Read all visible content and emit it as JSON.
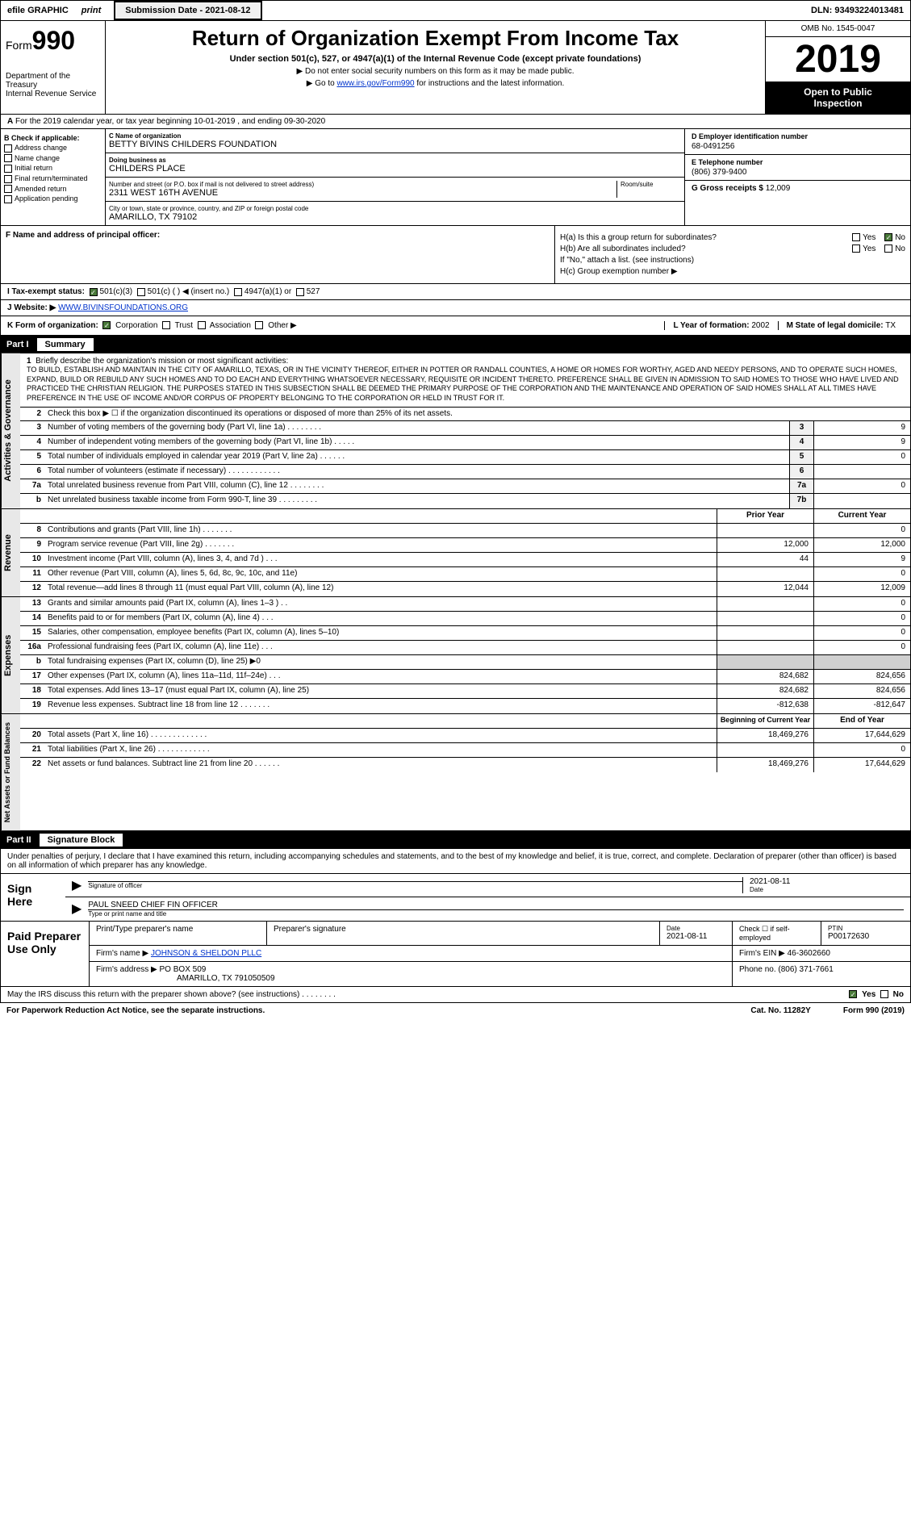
{
  "topbar": {
    "efile": "efile GRAPHIC",
    "print": "print",
    "submission_label": "Submission Date - 2021-08-12",
    "dln": "DLN: 93493224013481"
  },
  "header": {
    "form_label": "Form",
    "form_number": "990",
    "dept": "Department of the Treasury",
    "irs": "Internal Revenue Service",
    "title": "Return of Organization Exempt From Income Tax",
    "subtitle": "Under section 501(c), 527, or 4947(a)(1) of the Internal Revenue Code (except private foundations)",
    "arrow1": "▶ Do not enter social security numbers on this form as it may be made public.",
    "arrow2_pre": "▶ Go to ",
    "arrow2_link": "www.irs.gov/Form990",
    "arrow2_post": " for instructions and the latest information.",
    "omb": "OMB No. 1545-0047",
    "year": "2019",
    "inspection1": "Open to Public",
    "inspection2": "Inspection"
  },
  "period": "For the 2019 calendar year, or tax year beginning 10-01-2019    , and ending 09-30-2020",
  "box_b": {
    "title": "B Check if applicable:",
    "opts": [
      "Address change",
      "Name change",
      "Initial return",
      "Final return/terminated",
      "Amended return",
      "Application pending"
    ]
  },
  "box_c": {
    "name_lbl": "C Name of organization",
    "name": "BETTY BIVINS CHILDERS FOUNDATION",
    "dba_lbl": "Doing business as",
    "dba": "CHILDERS PLACE",
    "addr_lbl": "Number and street (or P.O. box if mail is not delivered to street address)",
    "room_lbl": "Room/suite",
    "addr": "2311 WEST 16TH AVENUE",
    "city_lbl": "City or town, state or province, country, and ZIP or foreign postal code",
    "city": "AMARILLO, TX  79102"
  },
  "box_d": {
    "lbl": "D Employer identification number",
    "val": "68-0491256"
  },
  "box_e": {
    "lbl": "E Telephone number",
    "val": "(806) 379-9400"
  },
  "box_g": {
    "lbl": "G Gross receipts $",
    "val": "12,009"
  },
  "box_f": "F  Name and address of principal officer:",
  "box_h": {
    "ha": "H(a)  Is this a group return for subordinates?",
    "hb": "H(b)  Are all subordinates included?",
    "hb_note": "If \"No,\" attach a list. (see instructions)",
    "hc": "H(c)  Group exemption number ▶",
    "yes": "Yes",
    "no": "No"
  },
  "tax_status": {
    "lbl": "I   Tax-exempt status:",
    "o1": "501(c)(3)",
    "o2": "501(c) (   ) ◀ (insert no.)",
    "o3": "4947(a)(1) or",
    "o4": "527"
  },
  "row_j": {
    "lbl": "J   Website: ▶",
    "val": "WWW.BIVINSFOUNDATIONS.ORG"
  },
  "row_k": {
    "lbl": "K Form of organization:",
    "o1": "Corporation",
    "o2": "Trust",
    "o3": "Association",
    "o4": "Other ▶",
    "l_lbl": "L Year of formation:",
    "l_val": "2002",
    "m_lbl": "M State of legal domicile:",
    "m_val": "TX"
  },
  "part1": {
    "label": "Part I",
    "title": "Summary"
  },
  "mission": {
    "num": "1",
    "intro": "Briefly describe the organization's mission or most significant activities:",
    "text": "TO BUILD, ESTABLISH AND MAINTAIN IN THE CITY OF AMARILLO, TEXAS, OR IN THE VICINITY THEREOF, EITHER IN POTTER OR RANDALL COUNTIES, A HOME OR HOMES FOR WORTHY, AGED AND NEEDY PERSONS, AND TO OPERATE SUCH HOMES, EXPAND, BUILD OR REBUILD ANY SUCH HOMES AND TO DO EACH AND EVERYTHING WHATSOEVER NECESSARY, REQUISITE OR INCIDENT THERETO. PREFERENCE SHALL BE GIVEN IN ADMISSION TO SAID HOMES TO THOSE WHO HAVE LIVED AND PRACTICED THE CHRISTIAN RELIGION. THE PURPOSES STATED IN THIS SUBSECTION SHALL BE DEEMED THE PRIMARY PURPOSE OF THE CORPORATION AND THE MAINTENANCE AND OPERATION OF SAID HOMES SHALL AT ALL TIMES HAVE PREFERENCE IN THE USE OF INCOME AND/OR CORPUS OF PROPERTY BELONGING TO THE CORPORATION OR HELD IN TRUST FOR IT."
  },
  "gov_lines": {
    "l2": "Check this box ▶ ☐ if the organization discontinued its operations or disposed of more than 25% of its net assets.",
    "l3": {
      "t": "Number of voting members of the governing body (Part VI, line 1a)   .    .    .    .    .    .    .    .",
      "b": "3",
      "v": "9"
    },
    "l4": {
      "t": "Number of independent voting members of the governing body (Part VI, line 1b)   .    .    .    .    .",
      "b": "4",
      "v": "9"
    },
    "l5": {
      "t": "Total number of individuals employed in calendar year 2019 (Part V, line 2a)   .    .    .    .    .    .",
      "b": "5",
      "v": "0"
    },
    "l6": {
      "t": "Total number of volunteers (estimate if necessary)   .    .    .    .    .    .    .    .    .    .    .    .",
      "b": "6",
      "v": ""
    },
    "l7a": {
      "t": "Total unrelated business revenue from Part VIII, column (C), line 12   .    .    .    .    .    .    .    .",
      "b": "7a",
      "v": "0"
    },
    "l7b": {
      "t": "Net unrelated business taxable income from Form 990-T, line 39   .    .    .    .    .    .    .    .    .",
      "b": "7b",
      "v": ""
    }
  },
  "rev_header": {
    "prior": "Prior Year",
    "current": "Current Year"
  },
  "revenue": [
    {
      "n": "8",
      "t": "Contributions and grants (Part VIII, line 1h)   .    .    .    .    .    .    .",
      "p": "",
      "c": "0"
    },
    {
      "n": "9",
      "t": "Program service revenue (Part VIII, line 2g)   .    .    .    .    .    .    .",
      "p": "12,000",
      "c": "12,000"
    },
    {
      "n": "10",
      "t": "Investment income (Part VIII, column (A), lines 3, 4, and 7d )   .    .    .",
      "p": "44",
      "c": "9"
    },
    {
      "n": "11",
      "t": "Other revenue (Part VIII, column (A), lines 5, 6d, 8c, 9c, 10c, and 11e)",
      "p": "",
      "c": "0"
    },
    {
      "n": "12",
      "t": "Total revenue—add lines 8 through 11 (must equal Part VIII, column (A), line 12)",
      "p": "12,044",
      "c": "12,009"
    }
  ],
  "expenses": [
    {
      "n": "13",
      "t": "Grants and similar amounts paid (Part IX, column (A), lines 1–3 )  .    .",
      "p": "",
      "c": "0"
    },
    {
      "n": "14",
      "t": "Benefits paid to or for members (Part IX, column (A), line 4)  .    .    .",
      "p": "",
      "c": "0"
    },
    {
      "n": "15",
      "t": "Salaries, other compensation, employee benefits (Part IX, column (A), lines 5–10)",
      "p": "",
      "c": "0"
    },
    {
      "n": "16a",
      "t": "Professional fundraising fees (Part IX, column (A), line 11e)  .    .    .",
      "p": "",
      "c": "0"
    },
    {
      "n": "b",
      "t": "Total fundraising expenses (Part IX, column (D), line 25) ▶0",
      "p": "SHADE",
      "c": "SHADE"
    },
    {
      "n": "17",
      "t": "Other expenses (Part IX, column (A), lines 11a–11d, 11f–24e)  .    .    .",
      "p": "824,682",
      "c": "824,656"
    },
    {
      "n": "18",
      "t": "Total expenses. Add lines 13–17 (must equal Part IX, column (A), line 25)",
      "p": "824,682",
      "c": "824,656"
    },
    {
      "n": "19",
      "t": "Revenue less expenses. Subtract line 18 from line 12   .    .    .    .    .    .    .",
      "p": "-812,638",
      "c": "-812,647"
    }
  ],
  "na_header": {
    "begin": "Beginning of Current Year",
    "end": "End of Year"
  },
  "netassets": [
    {
      "n": "20",
      "t": "Total assets (Part X, line 16)  .    .    .    .    .    .    .    .    .    .    .    .    .",
      "p": "18,469,276",
      "c": "17,644,629"
    },
    {
      "n": "21",
      "t": "Total liabilities (Part X, line 26)  .    .    .    .    .    .    .    .    .    .    .    .",
      "p": "",
      "c": "0"
    },
    {
      "n": "22",
      "t": "Net assets or fund balances. Subtract line 21 from line 20  .    .    .    .    .    .",
      "p": "18,469,276",
      "c": "17,644,629"
    }
  ],
  "part2": {
    "label": "Part II",
    "title": "Signature Block"
  },
  "sig": {
    "intro": "Under penalties of perjury, I declare that I have examined this return, including accompanying schedules and statements, and to the best of my knowledge and belief, it is true, correct, and complete. Declaration of preparer (other than officer) is based on all information of which preparer has any knowledge.",
    "sign_here": "Sign Here",
    "sig_officer": "Signature of officer",
    "date_lbl": "Date",
    "date_val": "2021-08-11",
    "name": "PAUL SNEED  CHIEF FIN OFFICER",
    "name_lbl": "Type or print name and title"
  },
  "prep": {
    "title": "Paid Preparer Use Only",
    "h1": "Print/Type preparer's name",
    "h2": "Preparer's signature",
    "h3": "Date",
    "h3v": "2021-08-11",
    "h4": "Check ☐ if self-employed",
    "h5": "PTIN",
    "h5v": "P00172630",
    "firm_lbl": "Firm's name    ▶",
    "firm": "JOHNSON & SHELDON PLLC",
    "ein_lbl": "Firm's EIN ▶",
    "ein": "46-3602660",
    "addr_lbl": "Firm's address ▶",
    "addr1": "PO BOX 509",
    "addr2": "AMARILLO, TX  791050509",
    "phone_lbl": "Phone no.",
    "phone": "(806) 371-7661"
  },
  "footer": {
    "discuss": "May the IRS discuss this return with the preparer shown above? (see instructions)   .    .    .    .    .    .    .    .",
    "yes": "Yes",
    "no": "No",
    "pra": "For Paperwork Reduction Act Notice, see the separate instructions.",
    "cat": "Cat. No. 11282Y",
    "form": "Form 990 (2019)"
  },
  "side_labels": {
    "gov": "Activities & Governance",
    "rev": "Revenue",
    "exp": "Expenses",
    "na": "Net Assets or Fund Balances"
  }
}
